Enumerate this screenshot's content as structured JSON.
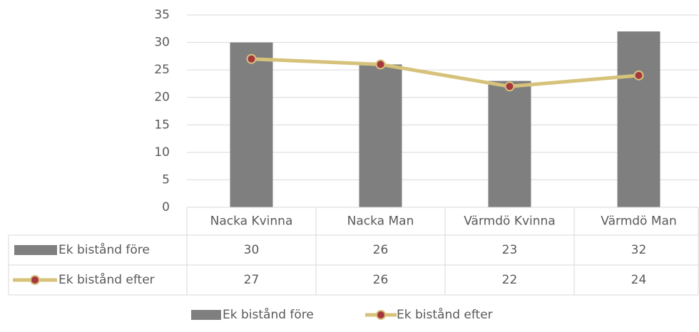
{
  "chart_data": {
    "type": "bar_line",
    "categories": [
      "Nacka Kvinna",
      "Nacka Man",
      "Värmdö Kvinna",
      "Värmdö Man"
    ],
    "series": [
      {
        "name": "Ek bistånd före",
        "type": "bar",
        "color": "#7f7f7f",
        "values": [
          30,
          26,
          23,
          32
        ]
      },
      {
        "name": "Ek bistånd efter",
        "type": "line",
        "color": "#d6c27a",
        "marker_color": "#a5373f",
        "values": [
          27,
          26,
          22,
          24
        ]
      }
    ],
    "ylim": [
      0,
      35
    ],
    "yticks": [
      0,
      5,
      10,
      15,
      20,
      25,
      30,
      35
    ],
    "grid": true,
    "legend": "bottom",
    "data_table": true
  }
}
